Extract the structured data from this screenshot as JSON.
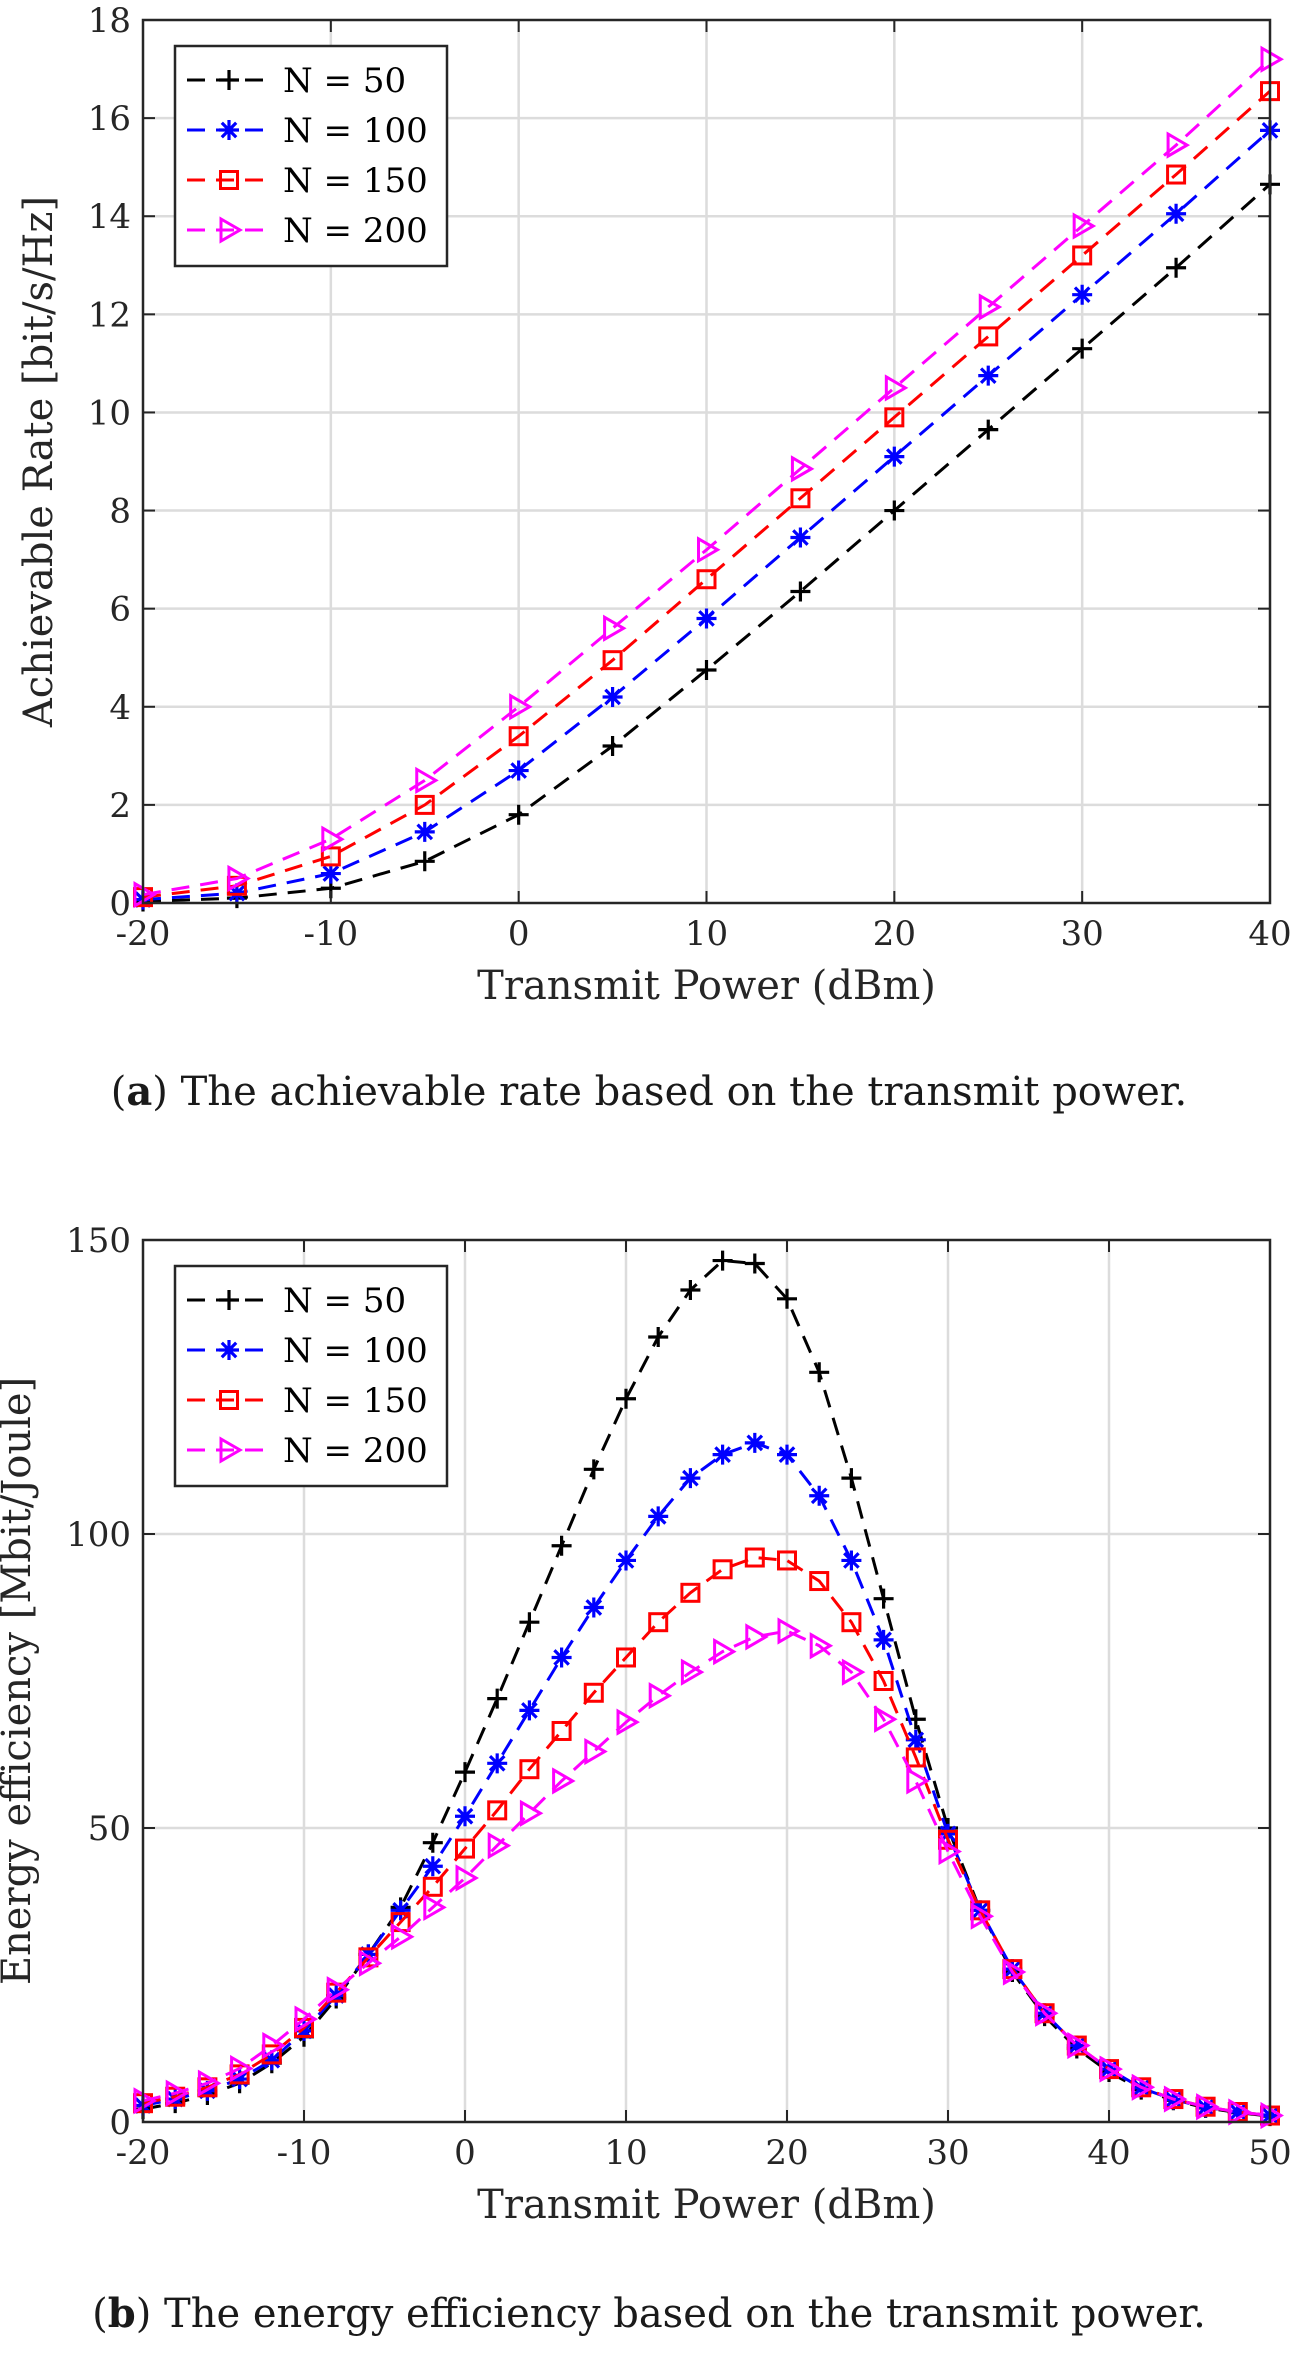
{
  "chart_data": [
    {
      "type": "line",
      "id": "a",
      "caption_letter": "a",
      "caption_text": "The achievable rate based on the transmit power.",
      "xlabel": "Transmit Power (dBm)",
      "ylabel": "Achievable Rate [bit/s/Hz]",
      "xlim": [
        -20,
        40
      ],
      "ylim": [
        0,
        18
      ],
      "xticks": [
        -20,
        -10,
        0,
        10,
        20,
        30,
        40
      ],
      "yticks": [
        0,
        2,
        4,
        6,
        8,
        10,
        12,
        14,
        16,
        18
      ],
      "grid": true,
      "legend_position": "top-left",
      "x": [
        -20,
        -15,
        -10,
        -5,
        0,
        5,
        10,
        15,
        20,
        25,
        30,
        35,
        40
      ],
      "series": [
        {
          "name": "N = 50",
          "color": "#000000",
          "marker": "plus",
          "values": [
            0.03,
            0.1,
            0.3,
            0.85,
            1.8,
            3.2,
            4.75,
            6.35,
            8.0,
            9.65,
            11.3,
            12.95,
            14.65
          ]
        },
        {
          "name": "N = 100",
          "color": "#0000ff",
          "marker": "star",
          "values": [
            0.07,
            0.2,
            0.6,
            1.45,
            2.7,
            4.2,
            5.8,
            7.45,
            9.1,
            10.75,
            12.4,
            14.05,
            15.75
          ]
        },
        {
          "name": "N = 150",
          "color": "#ff0000",
          "marker": "square",
          "values": [
            0.12,
            0.35,
            0.95,
            2.0,
            3.4,
            4.95,
            6.6,
            8.25,
            9.9,
            11.55,
            13.2,
            14.85,
            16.55
          ]
        },
        {
          "name": "N = 200",
          "color": "#ff00ff",
          "marker": "triangle",
          "values": [
            0.17,
            0.5,
            1.3,
            2.5,
            4.0,
            5.6,
            7.2,
            8.85,
            10.5,
            12.15,
            13.8,
            15.45,
            17.2
          ]
        }
      ]
    },
    {
      "type": "line",
      "id": "b",
      "caption_letter": "b",
      "caption_text": "The energy efficiency based on the transmit power.",
      "xlabel": "Transmit Power (dBm)",
      "ylabel": "Energy efficiency [Mbit/Joule]",
      "xlim": [
        -20,
        50
      ],
      "ylim": [
        0,
        150
      ],
      "xticks": [
        -20,
        -10,
        0,
        10,
        20,
        30,
        40,
        50
      ],
      "yticks": [
        0,
        50,
        100,
        150
      ],
      "grid": true,
      "legend_position": "top-left",
      "x": [
        -20,
        -18,
        -16,
        -14,
        -12,
        -10,
        -8,
        -6,
        -4,
        -2,
        0,
        2,
        4,
        6,
        8,
        10,
        12,
        14,
        16,
        18,
        20,
        22,
        24,
        26,
        28,
        30,
        32,
        34,
        36,
        38,
        40,
        42,
        44,
        46,
        48,
        50
      ],
      "series": [
        {
          "name": "N = 50",
          "color": "#000000",
          "marker": "plus",
          "values": [
            2.2,
            3.2,
            4.6,
            6.6,
            10,
            14.5,
            21,
            28.5,
            36.5,
            47.5,
            59.5,
            72,
            85,
            98,
            111,
            123,
            133.5,
            141.5,
            146.5,
            146,
            140,
            127.5,
            109.5,
            89,
            68.5,
            50,
            36,
            25.5,
            18,
            12.5,
            8.5,
            5.5,
            3.7,
            2.4,
            1.6,
            1.0
          ]
        },
        {
          "name": "N = 100",
          "color": "#0000ff",
          "marker": "star",
          "values": [
            2.8,
            3.9,
            5.3,
            7.3,
            10.5,
            15.5,
            21.5,
            28.5,
            36,
            43.5,
            52,
            61,
            70,
            79,
            87.5,
            95.5,
            103,
            109.5,
            113.5,
            115.5,
            113.5,
            106.5,
            95.5,
            82,
            65,
            49,
            36,
            26,
            18.5,
            13,
            9,
            5.8,
            3.8,
            2.5,
            1.7,
            1.1
          ]
        },
        {
          "name": "N = 150",
          "color": "#ff0000",
          "marker": "square",
          "values": [
            3.2,
            4.3,
            5.9,
            8.1,
            11.5,
            16,
            22,
            28,
            34,
            40,
            46.5,
            53,
            60,
            66.5,
            73,
            79,
            85,
            90,
            94,
            96,
            95.5,
            92,
            85,
            75,
            62,
            48,
            36,
            26,
            18.5,
            13,
            9,
            5.9,
            3.9,
            2.6,
            1.7,
            1.1
          ]
        },
        {
          "name": "N = 200",
          "color": "#ff00ff",
          "marker": "triangle",
          "values": [
            3.6,
            4.9,
            6.6,
            9.1,
            13,
            17.5,
            22.5,
            27,
            31.5,
            36.5,
            41.5,
            47,
            52.5,
            58,
            63,
            68,
            72.5,
            76.5,
            80,
            82.5,
            83.5,
            81,
            76.5,
            68.5,
            58,
            46,
            35,
            25.5,
            18.5,
            13,
            9,
            5.9,
            3.9,
            2.6,
            1.7,
            1.1
          ]
        }
      ]
    }
  ]
}
